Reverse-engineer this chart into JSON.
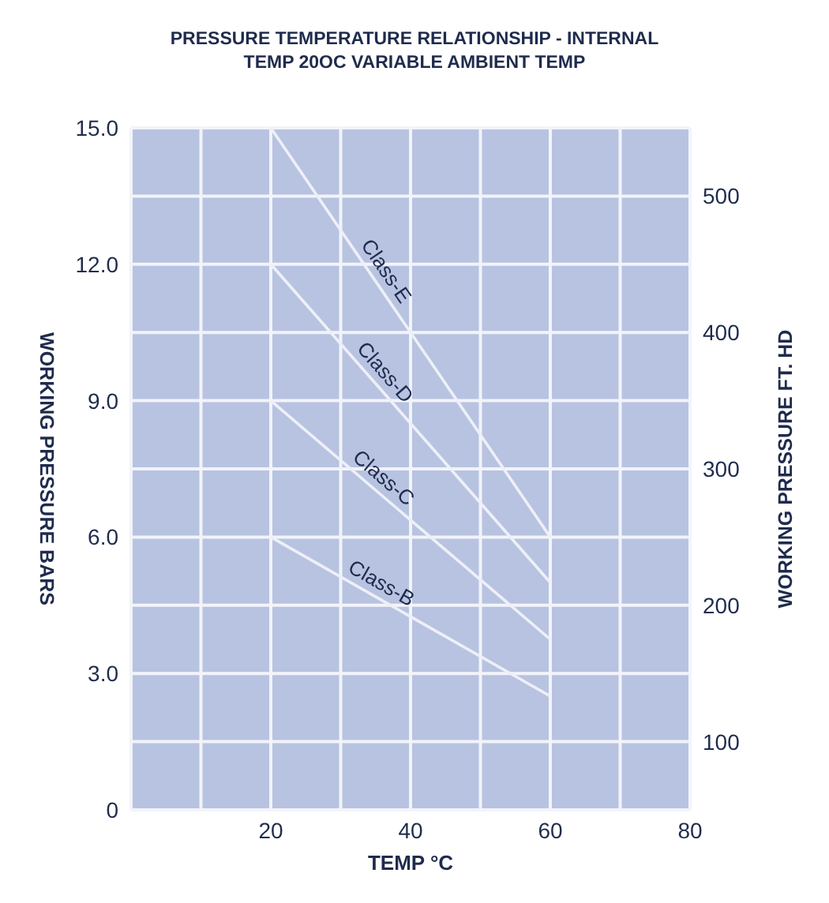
{
  "chart_data": {
    "type": "line",
    "title": "PRESSURE TEMPERATURE RELATIONSHIP - INTERNAL TEMP 20OC VARIABLE AMBIENT TEMP",
    "xlabel": "TEMP °C",
    "ylabel": "WORKING PRESSURE BARS",
    "y2label": "WORKING PRESSURE FT. HD",
    "x": [
      20,
      60
    ],
    "series": [
      {
        "name": "Class-E",
        "color": "#eef0f8",
        "values": [
          15,
          6
        ]
      },
      {
        "name": "Class-D",
        "color": "#eef0f8",
        "values": [
          12,
          5
        ]
      },
      {
        "name": "Class-C",
        "color": "#eef0f8",
        "values": [
          9,
          3.75
        ]
      },
      {
        "name": "Class-B",
        "color": "#eef0f8",
        "values": [
          6,
          2.5
        ]
      }
    ],
    "xlim": [
      0,
      80
    ],
    "xticks": [
      {
        "value": 0,
        "label": null
      },
      {
        "value": 10,
        "label": null
      },
      20,
      {
        "value": 30,
        "label": null
      },
      40,
      {
        "value": 50,
        "label": null
      },
      60,
      {
        "value": 70,
        "label": null
      },
      80
    ],
    "ylim": [
      0,
      15
    ],
    "yticks": [
      0,
      {
        "value": 1.5,
        "label": null
      },
      {
        "value": 3,
        "label": "3.0"
      },
      {
        "value": 4.5,
        "label": null
      },
      {
        "value": 6,
        "label": "6.0"
      },
      {
        "value": 7.5,
        "label": null
      },
      {
        "value": 9,
        "label": "9.0"
      },
      {
        "value": 10.5,
        "label": null
      },
      {
        "value": 12,
        "label": "12.0"
      },
      {
        "value": 13.5,
        "label": null
      },
      {
        "value": 15,
        "label": "15.0"
      }
    ],
    "y2lim": [
      50,
      550
    ],
    "y2ticks": [
      100,
      200,
      300,
      400,
      500
    ],
    "grid": true,
    "legend": false,
    "marker": "none",
    "line_style": "solid"
  }
}
